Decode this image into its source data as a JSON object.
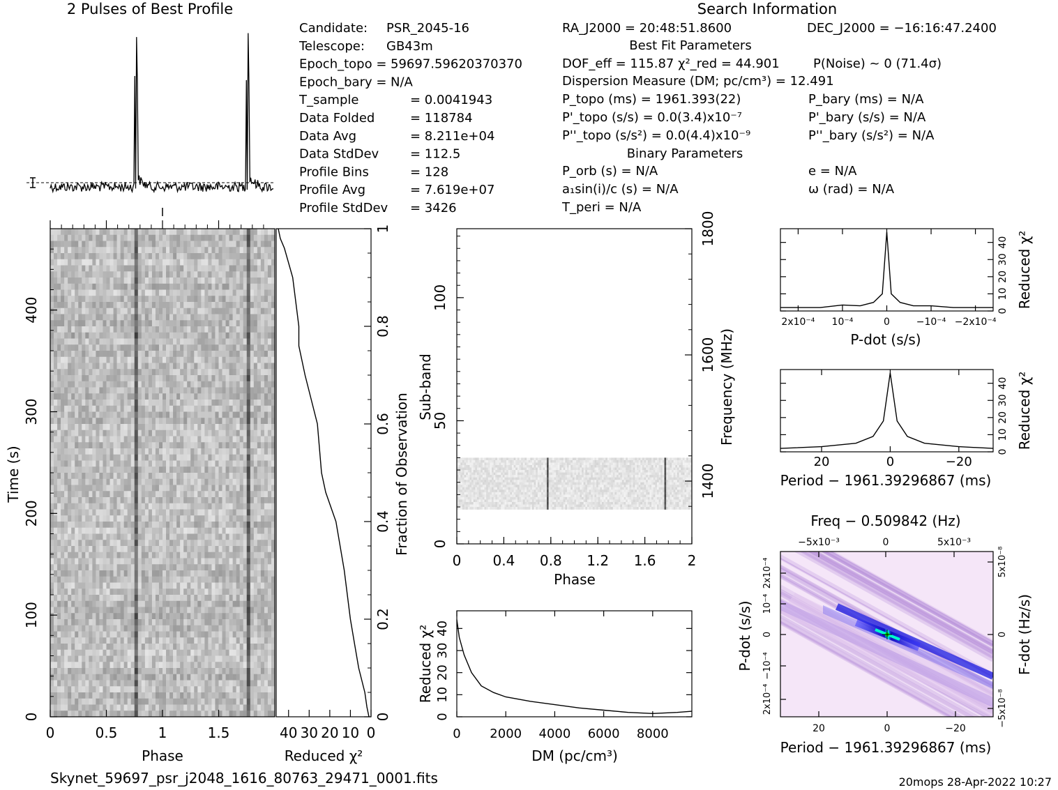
{
  "profile_title": "2 Pulses of Best Profile",
  "search_title": "Search Information",
  "best_fit_title": "Best Fit Parameters",
  "binary_title": "Binary Parameters",
  "footer_file": "Skynet_59697_psr_j2048_1616_80763_29471_0001.fits",
  "footer_stamp": "20mops 28-Apr-2022 10:27",
  "info_col1": [
    {
      "label": "Candidate:",
      "value": "PSR_2045-16"
    },
    {
      "label": "Telescope:",
      "value": "GB43m"
    },
    {
      "label": "Epoch_topo =",
      "value": "59697.59620370370"
    },
    {
      "label": "Epoch_bary =",
      "value": "N/A"
    },
    {
      "label": "T_sample",
      "value": "= 0.0041943"
    },
    {
      "label": "Data Folded",
      "value": "= 118784"
    },
    {
      "label": "Data Avg",
      "value": "= 8.211e+04"
    },
    {
      "label": "Data StdDev",
      "value": "= 112.5"
    },
    {
      "label": "Profile Bins",
      "value": "= 128"
    },
    {
      "label": "Profile Avg",
      "value": "= 7.619e+07"
    },
    {
      "label": "Profile StdDev",
      "value": "= 3426"
    }
  ],
  "info_col2": [
    "RA_J2000 = 20:48:51.8600",
    "DOF_eff = 115.87   χ²_red = 44.901",
    "Dispersion Measure (DM; pc/cm³) = 12.491",
    "P_topo (ms) = 1961.393(22)",
    "P'_topo (s/s) = 0.0(3.4)x10⁻⁷",
    "P''_topo (s/s²) = 0.0(4.4)x10⁻⁹",
    "P_orb (s) = N/A",
    "a₁sin(i)/c (s) = N/A",
    "T_peri = N/A"
  ],
  "info_col3": [
    "DEC_J2000 = −16:16:47.2400",
    "P(Noise) ~ 0    (71.4σ)",
    "P_bary (ms) = N/A",
    "P'_bary (s/s) = N/A",
    "P''_bary (s/s²) = N/A",
    "e = N/A",
    "ω (rad) = N/A"
  ],
  "chart_data": [
    {
      "type": "line",
      "title": "2 Pulses of Best Profile",
      "xlabel": "",
      "ylabel": "",
      "x_range": [
        0,
        2
      ],
      "peaks_phase": [
        0.77,
        1.77
      ]
    },
    {
      "type": "heatmap",
      "name": "time-phase",
      "xlabel": "Phase",
      "ylabel": "Time (s)",
      "x_ticks": [
        "0",
        "0.5",
        "1",
        "1.5"
      ],
      "y_ticks": [
        "0",
        "100",
        "200",
        "300",
        "400"
      ],
      "xlim": [
        0,
        2
      ],
      "ylim": [
        0,
        480
      ],
      "pulse_phase": [
        0.77,
        1.77
      ]
    },
    {
      "type": "line",
      "name": "reduced-chi2-vs-time",
      "xlabel": "Reduced χ²",
      "ylabel": "Fraction of Observation",
      "x_ticks": [
        "40",
        "30",
        "20",
        "10",
        "0"
      ],
      "y_ticks": [
        "0",
        "0.2",
        "0.4",
        "0.6",
        "0.8",
        "1"
      ],
      "xlim": [
        0,
        46
      ],
      "ylim": [
        0,
        1
      ],
      "points": [
        [
          0.0,
          1
        ],
        [
          0.02,
          2
        ],
        [
          0.05,
          3
        ],
        [
          0.1,
          6
        ],
        [
          0.15,
          8
        ],
        [
          0.2,
          10
        ],
        [
          0.3,
          13
        ],
        [
          0.4,
          17
        ],
        [
          0.46,
          22
        ],
        [
          0.5,
          24
        ],
        [
          0.6,
          26
        ],
        [
          0.7,
          32
        ],
        [
          0.76,
          35
        ],
        [
          0.8,
          35
        ],
        [
          0.9,
          38
        ],
        [
          0.96,
          42
        ],
        [
          0.98,
          44
        ],
        [
          1.0,
          45
        ]
      ]
    },
    {
      "type": "heatmap",
      "name": "subband-phase",
      "xlabel": "Phase",
      "ylabel": "Sub-band",
      "y2label": "Frequency (MHz)",
      "x_ticks": [
        "0",
        "0.4",
        "0.8",
        "1.2",
        "1.6",
        "2"
      ],
      "y_ticks": [
        "0",
        "50",
        "100"
      ],
      "y2_ticks": [
        "1400",
        "1600",
        "1800"
      ],
      "xlim": [
        0,
        2
      ],
      "ylim": [
        0,
        128
      ],
      "subband_range": [
        14,
        35
      ],
      "pulse_phase": [
        0.77,
        1.77
      ]
    },
    {
      "type": "line",
      "name": "chi2-vs-dm",
      "xlabel": "DM (pc/cm³)",
      "ylabel": "Reduced χ²",
      "x_ticks": [
        "0",
        "2000",
        "4000",
        "6000",
        "8000"
      ],
      "y_ticks": [
        "0",
        "10",
        "20",
        "30",
        "40"
      ],
      "xlim": [
        0,
        9600
      ],
      "ylim": [
        0,
        48
      ],
      "points": [
        [
          0,
          44
        ],
        [
          100,
          36
        ],
        [
          300,
          28
        ],
        [
          600,
          20
        ],
        [
          1000,
          14
        ],
        [
          1500,
          11
        ],
        [
          2000,
          9
        ],
        [
          3000,
          7
        ],
        [
          4000,
          5.5
        ],
        [
          5000,
          4
        ],
        [
          6000,
          3
        ],
        [
          7000,
          2
        ],
        [
          8000,
          1.5
        ],
        [
          9000,
          2
        ],
        [
          9600,
          2.5
        ]
      ]
    },
    {
      "type": "line",
      "name": "chi2-vs-pdot",
      "xlabel": "P-dot (s/s)",
      "ylabel": "Reduced χ²",
      "x_ticks": [
        "2x10⁻⁴",
        "10⁻⁴",
        "0",
        "−10⁻⁴",
        "−2x10⁻⁴"
      ],
      "y_ticks": [
        "0",
        "10",
        "20",
        "30",
        "40"
      ],
      "xlim": [
        0.00024,
        -0.00024
      ],
      "ylim": [
        0,
        48
      ],
      "points": [
        [
          0.00024,
          2
        ],
        [
          0.00015,
          2
        ],
        [
          0.0001,
          3.5
        ],
        [
          6e-05,
          3
        ],
        [
          3e-05,
          5
        ],
        [
          1e-05,
          10
        ],
        [
          0,
          46
        ],
        [
          -1e-05,
          10
        ],
        [
          -3e-05,
          5
        ],
        [
          -6e-05,
          3
        ],
        [
          -0.0001,
          3
        ],
        [
          -0.00015,
          2
        ],
        [
          -0.00024,
          2
        ]
      ]
    },
    {
      "type": "line",
      "name": "chi2-vs-period",
      "xlabel": "Period − 1961.39296867 (ms)",
      "ylabel": "Reduced χ²",
      "x_ticks": [
        "20",
        "0",
        "−20"
      ],
      "y_ticks": [
        "0",
        "10",
        "20",
        "30",
        "40"
      ],
      "xlim": [
        32,
        -30
      ],
      "ylim": [
        0,
        48
      ],
      "points": [
        [
          32,
          2
        ],
        [
          20,
          3
        ],
        [
          10,
          5
        ],
        [
          5,
          9
        ],
        [
          2,
          18
        ],
        [
          0,
          46
        ],
        [
          -2,
          18
        ],
        [
          -5,
          9
        ],
        [
          -10,
          5
        ],
        [
          -20,
          3
        ],
        [
          -30,
          2
        ]
      ]
    },
    {
      "type": "heatmap",
      "name": "pdot-period-plane",
      "title": "Freq − 0.509842 (Hz)",
      "xlabel": "Period − 1961.39296867 (ms)",
      "ylabel": "P-dot (s/s)",
      "y2label": "F-dot (Hz/s)",
      "x_ticks": [
        "20",
        "0",
        "−20"
      ],
      "top_ticks": [
        "−5x10⁻³",
        "0",
        "5x10⁻³"
      ],
      "y_ticks": [
        "2x10⁻⁴",
        "10⁻⁴",
        "0",
        "−10⁻⁴",
        "2x10⁻⁴"
      ],
      "y2_ticks": [
        "−5x10⁻⁸",
        "0",
        "5x10⁻⁸"
      ]
    }
  ]
}
